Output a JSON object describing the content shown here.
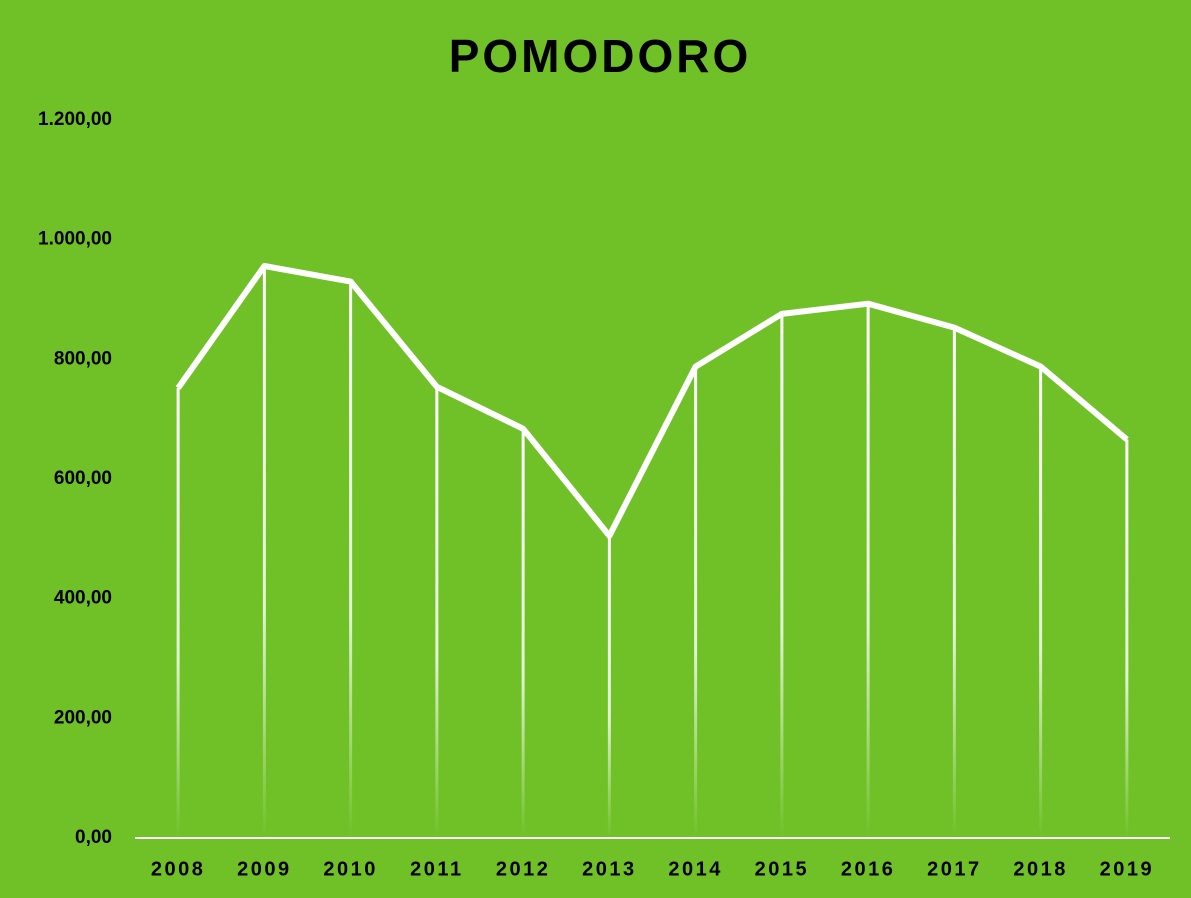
{
  "chart_data": {
    "type": "line",
    "title": "POMODORO",
    "categories": [
      "2008",
      "2009",
      "2010",
      "2011",
      "2012",
      "2013",
      "2014",
      "2015",
      "2016",
      "2017",
      "2018",
      "2019"
    ],
    "values": [
      752,
      956,
      930,
      754,
      684,
      505,
      788,
      876,
      893,
      853,
      788,
      666
    ],
    "color": "#ffffff",
    "background": "#6fc127",
    "ylim": [
      0,
      1200
    ],
    "yticks": [
      {
        "value": 0,
        "label": "0,00"
      },
      {
        "value": 200,
        "label": "200,00"
      },
      {
        "value": 400,
        "label": "400,00"
      },
      {
        "value": 600,
        "label": "600,00"
      },
      {
        "value": 800,
        "label": "800,00"
      },
      {
        "value": 1000,
        "label": "1.000,00"
      },
      {
        "value": 1200,
        "label": "1.200,00"
      }
    ],
    "drop_lines": true
  }
}
